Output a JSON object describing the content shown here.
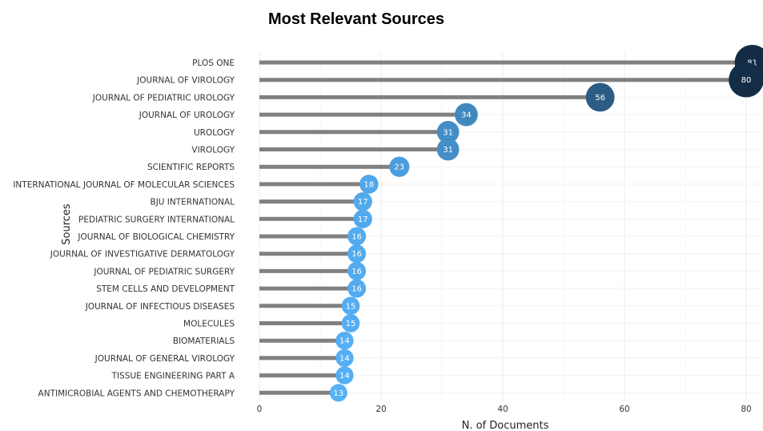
{
  "chart_data": {
    "type": "lollipop",
    "title": "Most Relevant Sources",
    "xlabel": "N. of Documents",
    "ylabel": "Sources",
    "xlim": [
      0,
      81
    ],
    "xticks": [
      0,
      20,
      40,
      60,
      80
    ],
    "grid": true,
    "legend": "none",
    "stem_color": "#808080",
    "color_scale": [
      "#56B1F7",
      "#132B43"
    ],
    "categories": [
      "PLOS ONE",
      "JOURNAL OF VIROLOGY",
      "JOURNAL OF PEDIATRIC UROLOGY",
      "JOURNAL OF UROLOGY",
      "UROLOGY",
      "VIROLOGY",
      "SCIENTIFIC REPORTS",
      "INTERNATIONAL JOURNAL OF MOLECULAR SCIENCES",
      "BJU INTERNATIONAL",
      "PEDIATRIC SURGERY INTERNATIONAL",
      "JOURNAL OF BIOLOGICAL CHEMISTRY",
      "JOURNAL OF INVESTIGATIVE DERMATOLOGY",
      "JOURNAL OF PEDIATRIC SURGERY",
      "STEM CELLS AND DEVELOPMENT",
      "JOURNAL OF INFECTIOUS DISEASES",
      "MOLECULES",
      "BIOMATERIALS",
      "JOURNAL OF GENERAL VIROLOGY",
      "TISSUE ENGINEERING PART A",
      "ANTIMICROBIAL AGENTS AND CHEMOTHERAPY"
    ],
    "values": [
      81,
      80,
      56,
      34,
      31,
      31,
      23,
      18,
      17,
      17,
      16,
      16,
      16,
      16,
      15,
      15,
      14,
      14,
      14,
      13
    ]
  }
}
